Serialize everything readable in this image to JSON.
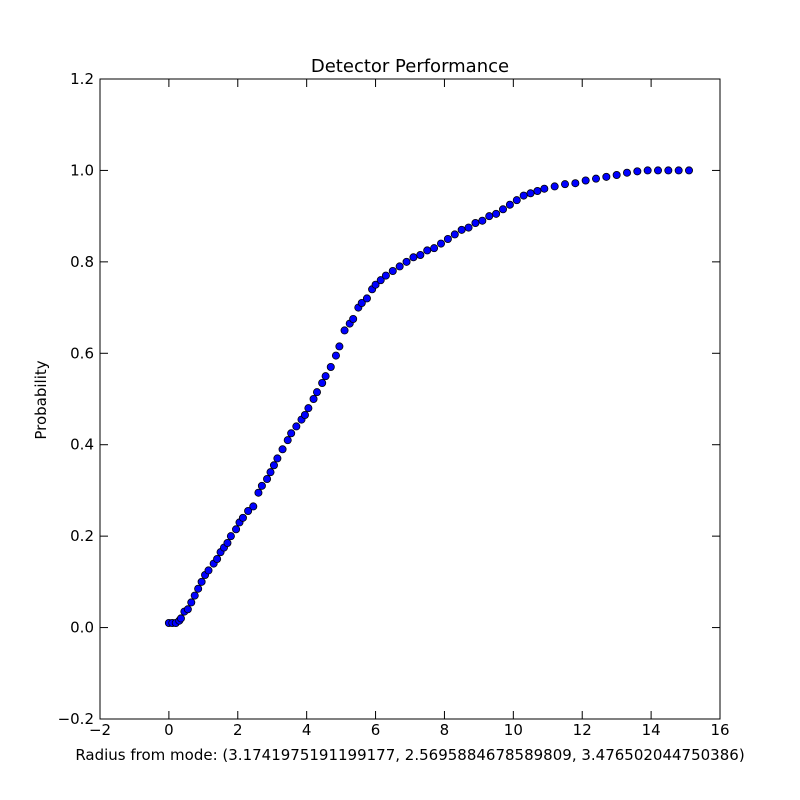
{
  "chart_data": {
    "type": "scatter",
    "title": "Detector Performance",
    "x_label": "Radius from mode: (3.1741975191199177, 2.5695884678589809, 3.476502044750386)",
    "y_label": "Probability",
    "xlim": [
      -2,
      16
    ],
    "ylim": [
      -0.2,
      1.2
    ],
    "xticks": [
      {
        "value": -2,
        "label": "−2"
      },
      0,
      2,
      4,
      6,
      8,
      10,
      12,
      14,
      16
    ],
    "yticks": [
      {
        "value": -0.2,
        "label": "−0.2"
      },
      {
        "value": 0,
        "label": "0.0"
      },
      0.2,
      0.4,
      0.6,
      0.8,
      {
        "value": 1,
        "label": "1.0"
      },
      1.2
    ],
    "series": [
      {
        "color": "#0000ff",
        "x": [
          0,
          0.1,
          0.2,
          0.3,
          0.35,
          0.45,
          0.55,
          0.65,
          0.75,
          0.85,
          0.95,
          1.05,
          1.15,
          1.3,
          1.4,
          1.5,
          1.6,
          1.7,
          1.8,
          1.95,
          2.05,
          2.15,
          2.3,
          2.45,
          2.6,
          2.7,
          2.85,
          2.95,
          3.05,
          3.15,
          3.3,
          3.45,
          3.55,
          3.7,
          3.85,
          3.95,
          4.05,
          4.2,
          4.3,
          4.45,
          4.55,
          4.7,
          4.85,
          4.95,
          5.1,
          5.25,
          5.35,
          5.5,
          5.6,
          5.75,
          5.9,
          6.0,
          6.15,
          6.3,
          6.5,
          6.7,
          6.9,
          7.1,
          7.3,
          7.5,
          7.7,
          7.9,
          8.1,
          8.3,
          8.5,
          8.7,
          8.9,
          9.1,
          9.3,
          9.5,
          9.7,
          9.9,
          10.1,
          10.3,
          10.5,
          10.7,
          10.9,
          11.2,
          11.5,
          11.8,
          12.1,
          12.4,
          12.7,
          13.0,
          13.3,
          13.6,
          13.9,
          14.2,
          14.5,
          14.8,
          15.1
        ],
        "values": [
          0.01,
          0.01,
          0.01,
          0.015,
          0.02,
          0.035,
          0.04,
          0.055,
          0.07,
          0.085,
          0.1,
          0.115,
          0.125,
          0.14,
          0.15,
          0.165,
          0.175,
          0.185,
          0.2,
          0.215,
          0.23,
          0.24,
          0.255,
          0.265,
          0.295,
          0.31,
          0.325,
          0.34,
          0.355,
          0.37,
          0.39,
          0.41,
          0.425,
          0.44,
          0.455,
          0.465,
          0.48,
          0.5,
          0.515,
          0.535,
          0.55,
          0.57,
          0.595,
          0.615,
          0.65,
          0.665,
          0.675,
          0.7,
          0.71,
          0.72,
          0.74,
          0.75,
          0.76,
          0.77,
          0.78,
          0.79,
          0.8,
          0.81,
          0.815,
          0.825,
          0.83,
          0.84,
          0.85,
          0.86,
          0.87,
          0.875,
          0.885,
          0.89,
          0.9,
          0.905,
          0.915,
          0.925,
          0.935,
          0.945,
          0.95,
          0.955,
          0.96,
          0.965,
          0.97,
          0.972,
          0.978,
          0.982,
          0.986,
          0.99,
          0.995,
          0.998,
          1.0,
          1.0,
          1.0,
          1.0,
          1.0
        ]
      }
    ]
  }
}
